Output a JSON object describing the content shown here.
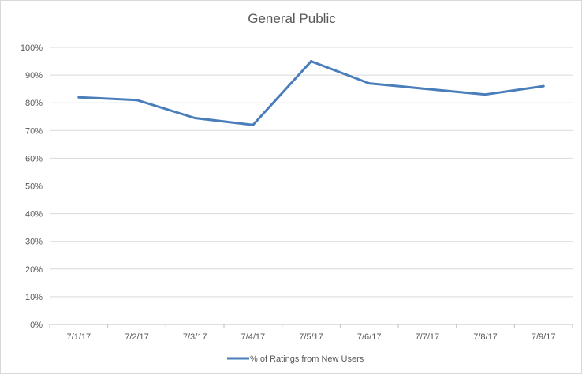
{
  "chart_data": {
    "type": "line",
    "title": "General Public",
    "xlabel": "",
    "ylabel": "",
    "categories": [
      "7/1/17",
      "7/2/17",
      "7/3/17",
      "7/4/17",
      "7/5/17",
      "7/6/17",
      "7/7/17",
      "7/8/17",
      "7/9/17"
    ],
    "y_ticks": [
      "0%",
      "10%",
      "20%",
      "30%",
      "40%",
      "50%",
      "60%",
      "70%",
      "80%",
      "90%",
      "100%"
    ],
    "ylim": [
      0,
      100
    ],
    "y_unit": "%",
    "grid": true,
    "legend_position": "bottom",
    "series": [
      {
        "name": "% of Ratings from New Users",
        "values": [
          82,
          81,
          74.5,
          72,
          95,
          87,
          85,
          83,
          86
        ],
        "color": "#4a7ebb"
      }
    ]
  }
}
